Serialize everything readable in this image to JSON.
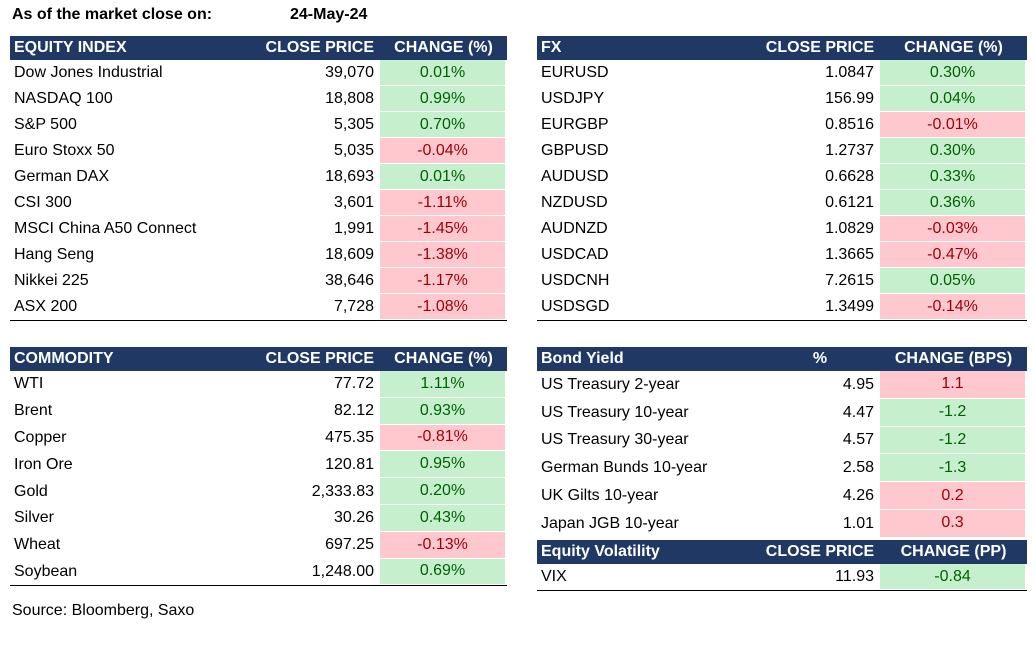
{
  "header": {
    "label": "As of the market close on:",
    "date": "24-May-24"
  },
  "equity_index": {
    "columns": [
      "EQUITY INDEX",
      "CLOSE PRICE",
      "CHANGE (%)"
    ],
    "rows": [
      [
        "Dow Jones Industrial",
        "39,070",
        "0.01%"
      ],
      [
        "NASDAQ 100",
        "18,808",
        "0.99%"
      ],
      [
        "S&P 500",
        "5,305",
        "0.70%"
      ],
      [
        "Euro Stoxx 50",
        "5,035",
        "-0.04%"
      ],
      [
        "German DAX",
        "18,693",
        "0.01%"
      ],
      [
        "CSI 300",
        "3,601",
        "-1.11%"
      ],
      [
        "MSCI China A50 Connect",
        "1,991",
        "-1.45%"
      ],
      [
        "Hang Seng",
        "18,609",
        "-1.38%"
      ],
      [
        "Nikkei 225",
        "38,646",
        "-1.17%"
      ],
      [
        "ASX 200",
        "7,728",
        "-1.08%"
      ]
    ]
  },
  "fx": {
    "columns": [
      "FX",
      "CLOSE PRICE",
      "CHANGE (%)"
    ],
    "rows": [
      [
        "EURUSD",
        "1.0847",
        "0.30%"
      ],
      [
        "USDJPY",
        "156.99",
        "0.04%"
      ],
      [
        "EURGBP",
        "0.8516",
        "-0.01%"
      ],
      [
        "GBPUSD",
        "1.2737",
        "0.30%"
      ],
      [
        "AUDUSD",
        "0.6628",
        "0.33%"
      ],
      [
        "NZDUSD",
        "0.6121",
        "0.36%"
      ],
      [
        "AUDNZD",
        "1.0829",
        "-0.03%"
      ],
      [
        "USDCAD",
        "1.3665",
        "-0.47%"
      ],
      [
        "USDCNH",
        "7.2615",
        "0.05%"
      ],
      [
        "USDSGD",
        "1.3499",
        "-0.14%"
      ]
    ]
  },
  "commodity": {
    "columns": [
      "COMMODITY",
      "CLOSE PRICE",
      "CHANGE (%)"
    ],
    "rows": [
      [
        "WTI",
        "77.72",
        "1.11%"
      ],
      [
        "Brent",
        "82.12",
        "0.93%"
      ],
      [
        "Copper",
        "475.35",
        "-0.81%"
      ],
      [
        "Iron Ore",
        "120.81",
        "0.95%"
      ],
      [
        "Gold",
        "2,333.83",
        "0.20%"
      ],
      [
        "Silver",
        "30.26",
        "0.43%"
      ],
      [
        "Wheat",
        "697.25",
        "-0.13%"
      ],
      [
        "Soybean",
        "1,248.00",
        "0.69%"
      ]
    ]
  },
  "bond_yield": {
    "columns": [
      "Bond Yield",
      "%",
      "CHANGE (BPS)"
    ],
    "rows": [
      [
        "US Treasury 2-year",
        "4.95",
        "1.1"
      ],
      [
        "US Treasury 10-year",
        "4.47",
        "-1.2"
      ],
      [
        "US Treasury 30-year",
        "4.57",
        "-1.2"
      ],
      [
        "German Bunds 10-year",
        "2.58",
        "-1.3"
      ],
      [
        "UK Gilts 10-year",
        "4.26",
        "0.2"
      ],
      [
        "Japan JGB 10-year",
        "1.01",
        "0.3"
      ]
    ]
  },
  "equity_volatility": {
    "columns": [
      "Equity Volatility",
      "CLOSE PRICE",
      "CHANGE (PP)"
    ],
    "rows": [
      [
        "VIX",
        "11.93",
        "-0.84"
      ]
    ]
  },
  "source": "Source: Bloomberg, Saxo"
}
